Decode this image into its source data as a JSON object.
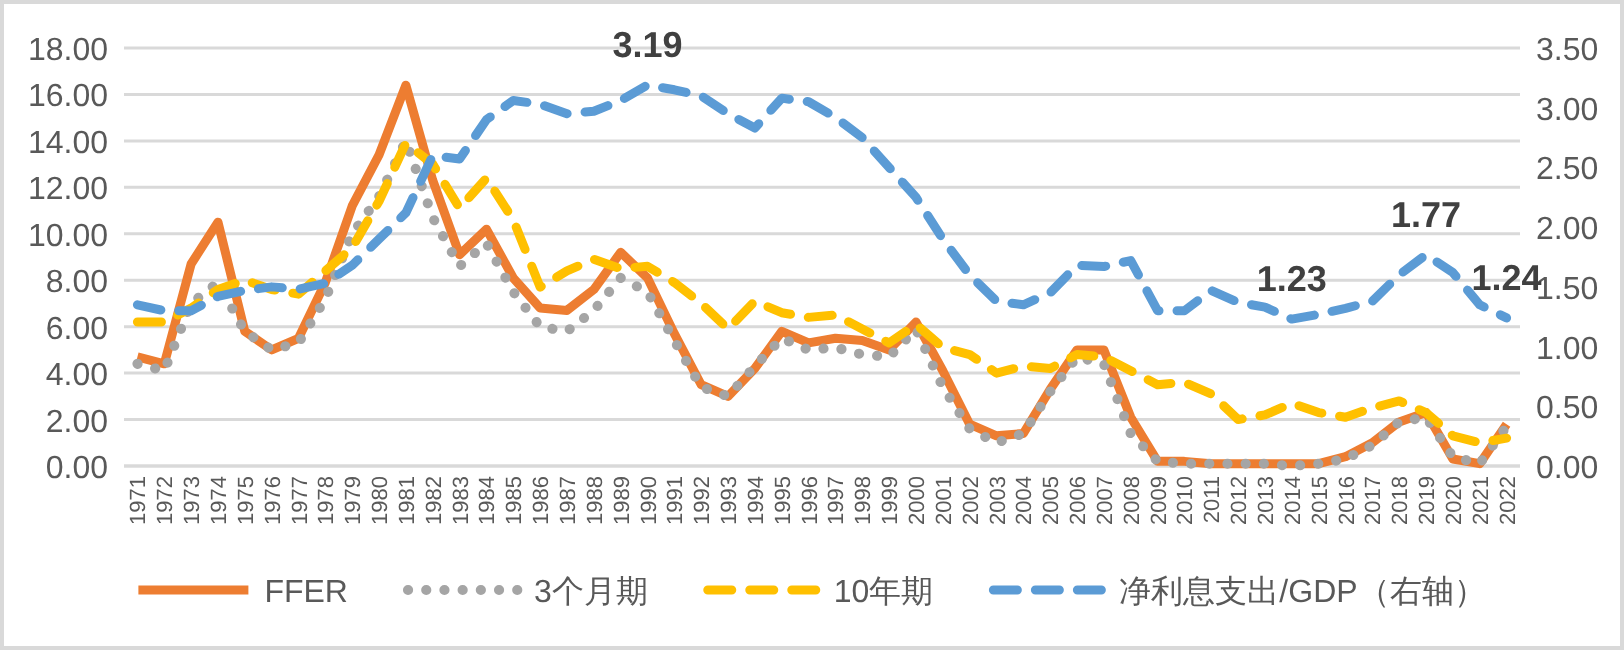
{
  "chart_data": {
    "type": "line",
    "categories": [
      "1971",
      "1972",
      "1973",
      "1974",
      "1975",
      "1976",
      "1977",
      "1978",
      "1979",
      "1980",
      "1981",
      "1982",
      "1983",
      "1984",
      "1985",
      "1986",
      "1987",
      "1988",
      "1989",
      "1990",
      "1991",
      "1992",
      "1993",
      "1994",
      "1995",
      "1996",
      "1997",
      "1998",
      "1999",
      "2000",
      "2001",
      "2002",
      "2003",
      "2004",
      "2005",
      "2006",
      "2007",
      "2008",
      "2009",
      "2010",
      "2011",
      "2012",
      "2013",
      "2014",
      "2015",
      "2016",
      "2017",
      "2018",
      "2019",
      "2020",
      "2021",
      "2022"
    ],
    "series": [
      {
        "name": "FFER",
        "color": "#ed7d31",
        "line_style": "solid",
        "values": [
          4.7,
          4.4,
          8.7,
          10.5,
          5.8,
          5.0,
          5.5,
          7.9,
          11.2,
          13.4,
          16.4,
          12.3,
          9.1,
          10.2,
          8.1,
          6.8,
          6.7,
          7.6,
          9.2,
          8.1,
          5.7,
          3.5,
          3.0,
          4.2,
          5.8,
          5.3,
          5.5,
          5.4,
          5.0,
          6.2,
          4.1,
          1.8,
          1.3,
          1.4,
          3.3,
          5.0,
          5.0,
          2.1,
          0.2,
          0.2,
          0.1,
          0.1,
          0.1,
          0.1,
          0.1,
          0.4,
          1.0,
          1.9,
          2.3,
          0.3,
          0.1,
          1.8
        ]
      },
      {
        "name": "3个月期",
        "color": "#a5a5a5",
        "line_style": "dotted",
        "values": [
          4.4,
          4.1,
          7.0,
          7.9,
          5.8,
          5.0,
          5.3,
          7.2,
          10.0,
          11.6,
          14.0,
          10.7,
          8.6,
          9.6,
          7.5,
          6.0,
          5.8,
          6.7,
          8.1,
          7.5,
          5.4,
          3.4,
          3.0,
          4.3,
          5.5,
          5.0,
          5.1,
          4.8,
          4.7,
          5.9,
          3.4,
          1.6,
          1.0,
          1.4,
          3.2,
          4.7,
          4.4,
          1.4,
          0.2,
          0.1,
          0.1,
          0.1,
          0.1,
          0.0,
          0.1,
          0.3,
          0.9,
          1.9,
          2.1,
          0.4,
          0.1,
          1.7
        ]
      },
      {
        "name": "10年期",
        "color": "#ffc000",
        "line_style": "dashed",
        "values": [
          6.2,
          6.2,
          6.8,
          7.6,
          8.0,
          7.6,
          7.4,
          8.4,
          9.4,
          11.4,
          13.9,
          13.0,
          11.1,
          12.4,
          10.6,
          7.7,
          8.4,
          8.9,
          8.5,
          8.6,
          7.9,
          7.0,
          5.9,
          7.1,
          6.6,
          6.4,
          6.5,
          5.9,
          5.3,
          6.1,
          5.1,
          4.8,
          4.0,
          4.3,
          4.2,
          4.8,
          4.7,
          4.1,
          3.5,
          3.6,
          3.1,
          2.0,
          2.2,
          2.7,
          2.3,
          2.1,
          2.5,
          2.8,
          2.3,
          1.3,
          1.0,
          1.2
        ]
      },
      {
        "name": "净利息支出/GDP（右轴）",
        "color": "#5b9bd5",
        "line_style": "dashed",
        "axis": "y2",
        "values": [
          1.35,
          1.3,
          1.3,
          1.42,
          1.47,
          1.5,
          1.48,
          1.53,
          1.68,
          1.9,
          2.12,
          2.6,
          2.57,
          2.9,
          3.06,
          3.03,
          2.95,
          2.97,
          3.06,
          3.19,
          3.15,
          3.1,
          2.95,
          2.83,
          3.08,
          3.05,
          2.92,
          2.75,
          2.5,
          2.25,
          1.9,
          1.6,
          1.38,
          1.35,
          1.45,
          1.68,
          1.67,
          1.72,
          1.3,
          1.3,
          1.47,
          1.37,
          1.33,
          1.23,
          1.27,
          1.32,
          1.38,
          1.6,
          1.77,
          1.62,
          1.35,
          1.24
        ],
        "value_labels": [
          null,
          null,
          null,
          null,
          null,
          null,
          null,
          null,
          null,
          null,
          null,
          null,
          null,
          null,
          null,
          null,
          null,
          null,
          null,
          "3.19",
          null,
          null,
          null,
          null,
          null,
          null,
          null,
          null,
          null,
          null,
          null,
          null,
          null,
          null,
          null,
          null,
          null,
          null,
          null,
          null,
          null,
          null,
          null,
          "1.23",
          null,
          null,
          null,
          null,
          "1.77",
          null,
          null,
          "1.24"
        ]
      }
    ],
    "ylim": [
      0,
      18
    ],
    "yticks": [
      {
        "value": 0,
        "label": "0.00"
      },
      {
        "value": 2,
        "label": "2.00"
      },
      {
        "value": 4,
        "label": "4.00"
      },
      {
        "value": 6,
        "label": "6.00"
      },
      {
        "value": 8,
        "label": "8.00"
      },
      {
        "value": 10,
        "label": "10.00"
      },
      {
        "value": 12,
        "label": "12.00"
      },
      {
        "value": 14,
        "label": "14.00"
      },
      {
        "value": 16,
        "label": "16.00"
      },
      {
        "value": 18,
        "label": "18.00"
      }
    ],
    "y2lim": [
      0,
      3.5
    ],
    "y2ticks": [
      {
        "value": 0,
        "label": "0.00"
      },
      {
        "value": 0.5,
        "label": "0.50"
      },
      {
        "value": 1,
        "label": "1.00"
      },
      {
        "value": 1.5,
        "label": "1.50"
      },
      {
        "value": 2,
        "label": "2.00"
      },
      {
        "value": 2.5,
        "label": "2.50"
      },
      {
        "value": 3,
        "label": "3.00"
      },
      {
        "value": 3.5,
        "label": "3.50"
      }
    ],
    "grid": "y",
    "legend": "bottom",
    "marker": "none"
  }
}
